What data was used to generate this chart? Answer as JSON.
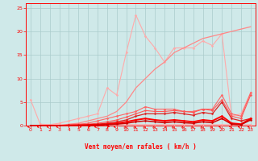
{
  "title": "",
  "xlabel": "Vent moyen/en rafales ( km/h )",
  "ylabel": "",
  "xlim": [
    -0.5,
    23.5
  ],
  "ylim": [
    0,
    26
  ],
  "yticks": [
    0,
    5,
    10,
    15,
    20,
    25
  ],
  "xticks": [
    0,
    1,
    2,
    3,
    4,
    5,
    6,
    7,
    8,
    9,
    10,
    11,
    12,
    13,
    14,
    15,
    16,
    17,
    18,
    19,
    20,
    21,
    22,
    23
  ],
  "bg_color": "#cfe9e9",
  "grid_color": "#aacccc",
  "series": [
    {
      "x": [
        0,
        1,
        2,
        3,
        4,
        5,
        6,
        7,
        8,
        9,
        10,
        11,
        12,
        13,
        14,
        15,
        16,
        17,
        18,
        19,
        20,
        21,
        22,
        23
      ],
      "y": [
        5.5,
        0.3,
        0.2,
        0.2,
        0.2,
        0.3,
        0.3,
        0.2,
        0.3,
        0.2,
        0.3,
        0.2,
        0.2,
        0.2,
        0.2,
        0.2,
        0.2,
        0.2,
        0.2,
        0.2,
        0.2,
        0.2,
        0.2,
        0.2
      ],
      "color": "#ffaaaa",
      "lw": 0.8,
      "marker": "D",
      "ms": 1.5
    },
    {
      "x": [
        0,
        1,
        2,
        3,
        4,
        5,
        6,
        7,
        8,
        9,
        10,
        11,
        12,
        13,
        14,
        15,
        16,
        17,
        18,
        19,
        20,
        21,
        22,
        23
      ],
      "y": [
        0,
        0,
        0.2,
        0.5,
        1.0,
        1.5,
        2.0,
        2.5,
        8.0,
        6.5,
        15.5,
        23.5,
        19.0,
        16.5,
        13.5,
        16.5,
        16.5,
        16.5,
        18.0,
        17.0,
        19.5,
        2.0,
        2.5,
        7.0
      ],
      "color": "#ffaaaa",
      "lw": 0.8,
      "marker": "D",
      "ms": 1.5
    },
    {
      "x": [
        0,
        1,
        2,
        3,
        4,
        5,
        6,
        7,
        8,
        9,
        10,
        11,
        12,
        13,
        14,
        15,
        16,
        17,
        18,
        19,
        20,
        21,
        22,
        23
      ],
      "y": [
        0,
        0,
        0,
        0,
        0.3,
        0.5,
        1.0,
        1.5,
        2.0,
        3.0,
        5.0,
        8.0,
        10.0,
        12.0,
        13.5,
        15.5,
        16.5,
        17.5,
        18.5,
        19.0,
        19.5,
        20.0,
        20.5,
        21.0
      ],
      "color": "#ff8888",
      "lw": 0.9,
      "marker": null,
      "ms": 0
    },
    {
      "x": [
        0,
        1,
        2,
        3,
        4,
        5,
        6,
        7,
        8,
        9,
        10,
        11,
        12,
        13,
        14,
        15,
        16,
        17,
        18,
        19,
        20,
        21,
        22,
        23
      ],
      "y": [
        0,
        0,
        0,
        0,
        0.2,
        0.3,
        0.5,
        1.0,
        1.5,
        2.0,
        2.5,
        3.0,
        4.0,
        3.5,
        3.5,
        3.5,
        3.0,
        3.0,
        3.5,
        3.5,
        6.5,
        2.5,
        2.0,
        7.0
      ],
      "color": "#ff6666",
      "lw": 0.8,
      "marker": "D",
      "ms": 1.5
    },
    {
      "x": [
        0,
        1,
        2,
        3,
        4,
        5,
        6,
        7,
        8,
        9,
        10,
        11,
        12,
        13,
        14,
        15,
        16,
        17,
        18,
        19,
        20,
        21,
        22,
        23
      ],
      "y": [
        0,
        0,
        0,
        0,
        0.1,
        0.2,
        0.3,
        0.5,
        0.8,
        1.2,
        1.8,
        2.5,
        3.2,
        3.0,
        3.0,
        3.2,
        3.0,
        2.8,
        3.5,
        3.2,
        5.5,
        2.0,
        1.5,
        6.5
      ],
      "color": "#ff5555",
      "lw": 0.8,
      "marker": "D",
      "ms": 1.5
    },
    {
      "x": [
        0,
        1,
        2,
        3,
        4,
        5,
        6,
        7,
        8,
        9,
        10,
        11,
        12,
        13,
        14,
        15,
        16,
        17,
        18,
        19,
        20,
        21,
        22,
        23
      ],
      "y": [
        0,
        0,
        0,
        0,
        0.1,
        0.1,
        0.2,
        0.3,
        0.5,
        0.8,
        1.2,
        2.0,
        2.5,
        2.5,
        2.5,
        2.8,
        2.5,
        2.2,
        2.8,
        2.5,
        5.0,
        1.5,
        1.0,
        1.5
      ],
      "color": "#dd2222",
      "lw": 0.9,
      "marker": "D",
      "ms": 1.5
    },
    {
      "x": [
        0,
        1,
        2,
        3,
        4,
        5,
        6,
        7,
        8,
        9,
        10,
        11,
        12,
        13,
        14,
        15,
        16,
        17,
        18,
        19,
        20,
        21,
        22,
        23
      ],
      "y": [
        0,
        0,
        0,
        0,
        0,
        0.05,
        0.1,
        0.2,
        0.3,
        0.5,
        0.8,
        1.2,
        1.5,
        1.2,
        1.0,
        1.2,
        1.0,
        0.8,
        1.2,
        1.0,
        2.0,
        0.5,
        0.3,
        1.5
      ],
      "color": "#ff0000",
      "lw": 1.4,
      "marker": "D",
      "ms": 1.5
    },
    {
      "x": [
        0,
        1,
        2,
        3,
        4,
        5,
        6,
        7,
        8,
        9,
        10,
        11,
        12,
        13,
        14,
        15,
        16,
        17,
        18,
        19,
        20,
        21,
        22,
        23
      ],
      "y": [
        0,
        0,
        0,
        0,
        0,
        0,
        0.05,
        0.1,
        0.2,
        0.3,
        0.5,
        0.8,
        1.0,
        0.8,
        0.6,
        0.8,
        0.6,
        0.5,
        0.8,
        0.6,
        1.5,
        0.3,
        0.2,
        1.2
      ],
      "color": "#cc0000",
      "lw": 1.1,
      "marker": "D",
      "ms": 1.5
    }
  ],
  "wind_angles": [
    270,
    270,
    270,
    270,
    180,
    90,
    45,
    270,
    45,
    270,
    225,
    225,
    225,
    225,
    135,
    225,
    225,
    225,
    225,
    225,
    270,
    315,
    270,
    270
  ]
}
